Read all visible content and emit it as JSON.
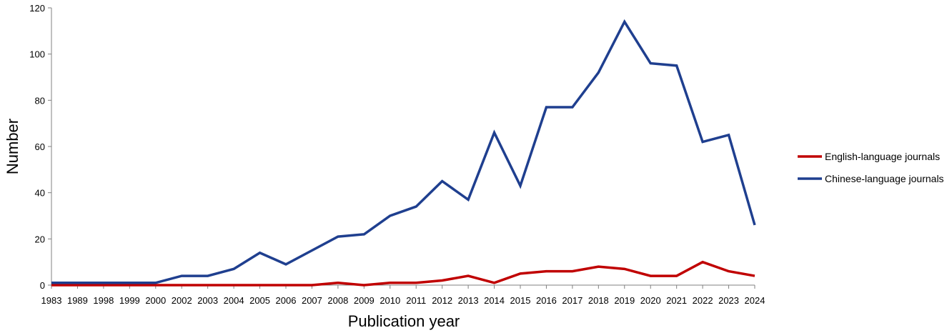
{
  "chart_data": {
    "type": "line",
    "title": "",
    "xlabel": "Publication year",
    "ylabel": "Number",
    "ylim": [
      0,
      120
    ],
    "yticks": [
      "0",
      "20",
      "40",
      "60",
      "80",
      "100",
      "120"
    ],
    "grid": false,
    "legend_position": "right",
    "categories": [
      "1983",
      "1989",
      "1998",
      "1999",
      "2000",
      "2002",
      "2003",
      "2004",
      "2005",
      "2006",
      "2007",
      "2008",
      "2009",
      "2010",
      "2011",
      "2012",
      "2013",
      "2014",
      "2015",
      "2016",
      "2017",
      "2018",
      "2019",
      "2020",
      "2021",
      "2022",
      "2023",
      "2024"
    ],
    "series": [
      {
        "name": "English-language journals",
        "color": "#c00000",
        "values": [
          0,
          0,
          0,
          0,
          0,
          0,
          0,
          0,
          0,
          0,
          0,
          1,
          0,
          1,
          1,
          2,
          4,
          1,
          5,
          6,
          6,
          8,
          7,
          4,
          4,
          10,
          6,
          4
        ]
      },
      {
        "name": "Chinese-language journals",
        "color": "#1f3f8f",
        "values": [
          1,
          1,
          1,
          1,
          1,
          4,
          4,
          7,
          14,
          9,
          15,
          21,
          22,
          30,
          34,
          45,
          37,
          66,
          43,
          77,
          77,
          92,
          114,
          96,
          95,
          62,
          65,
          26
        ]
      }
    ]
  }
}
